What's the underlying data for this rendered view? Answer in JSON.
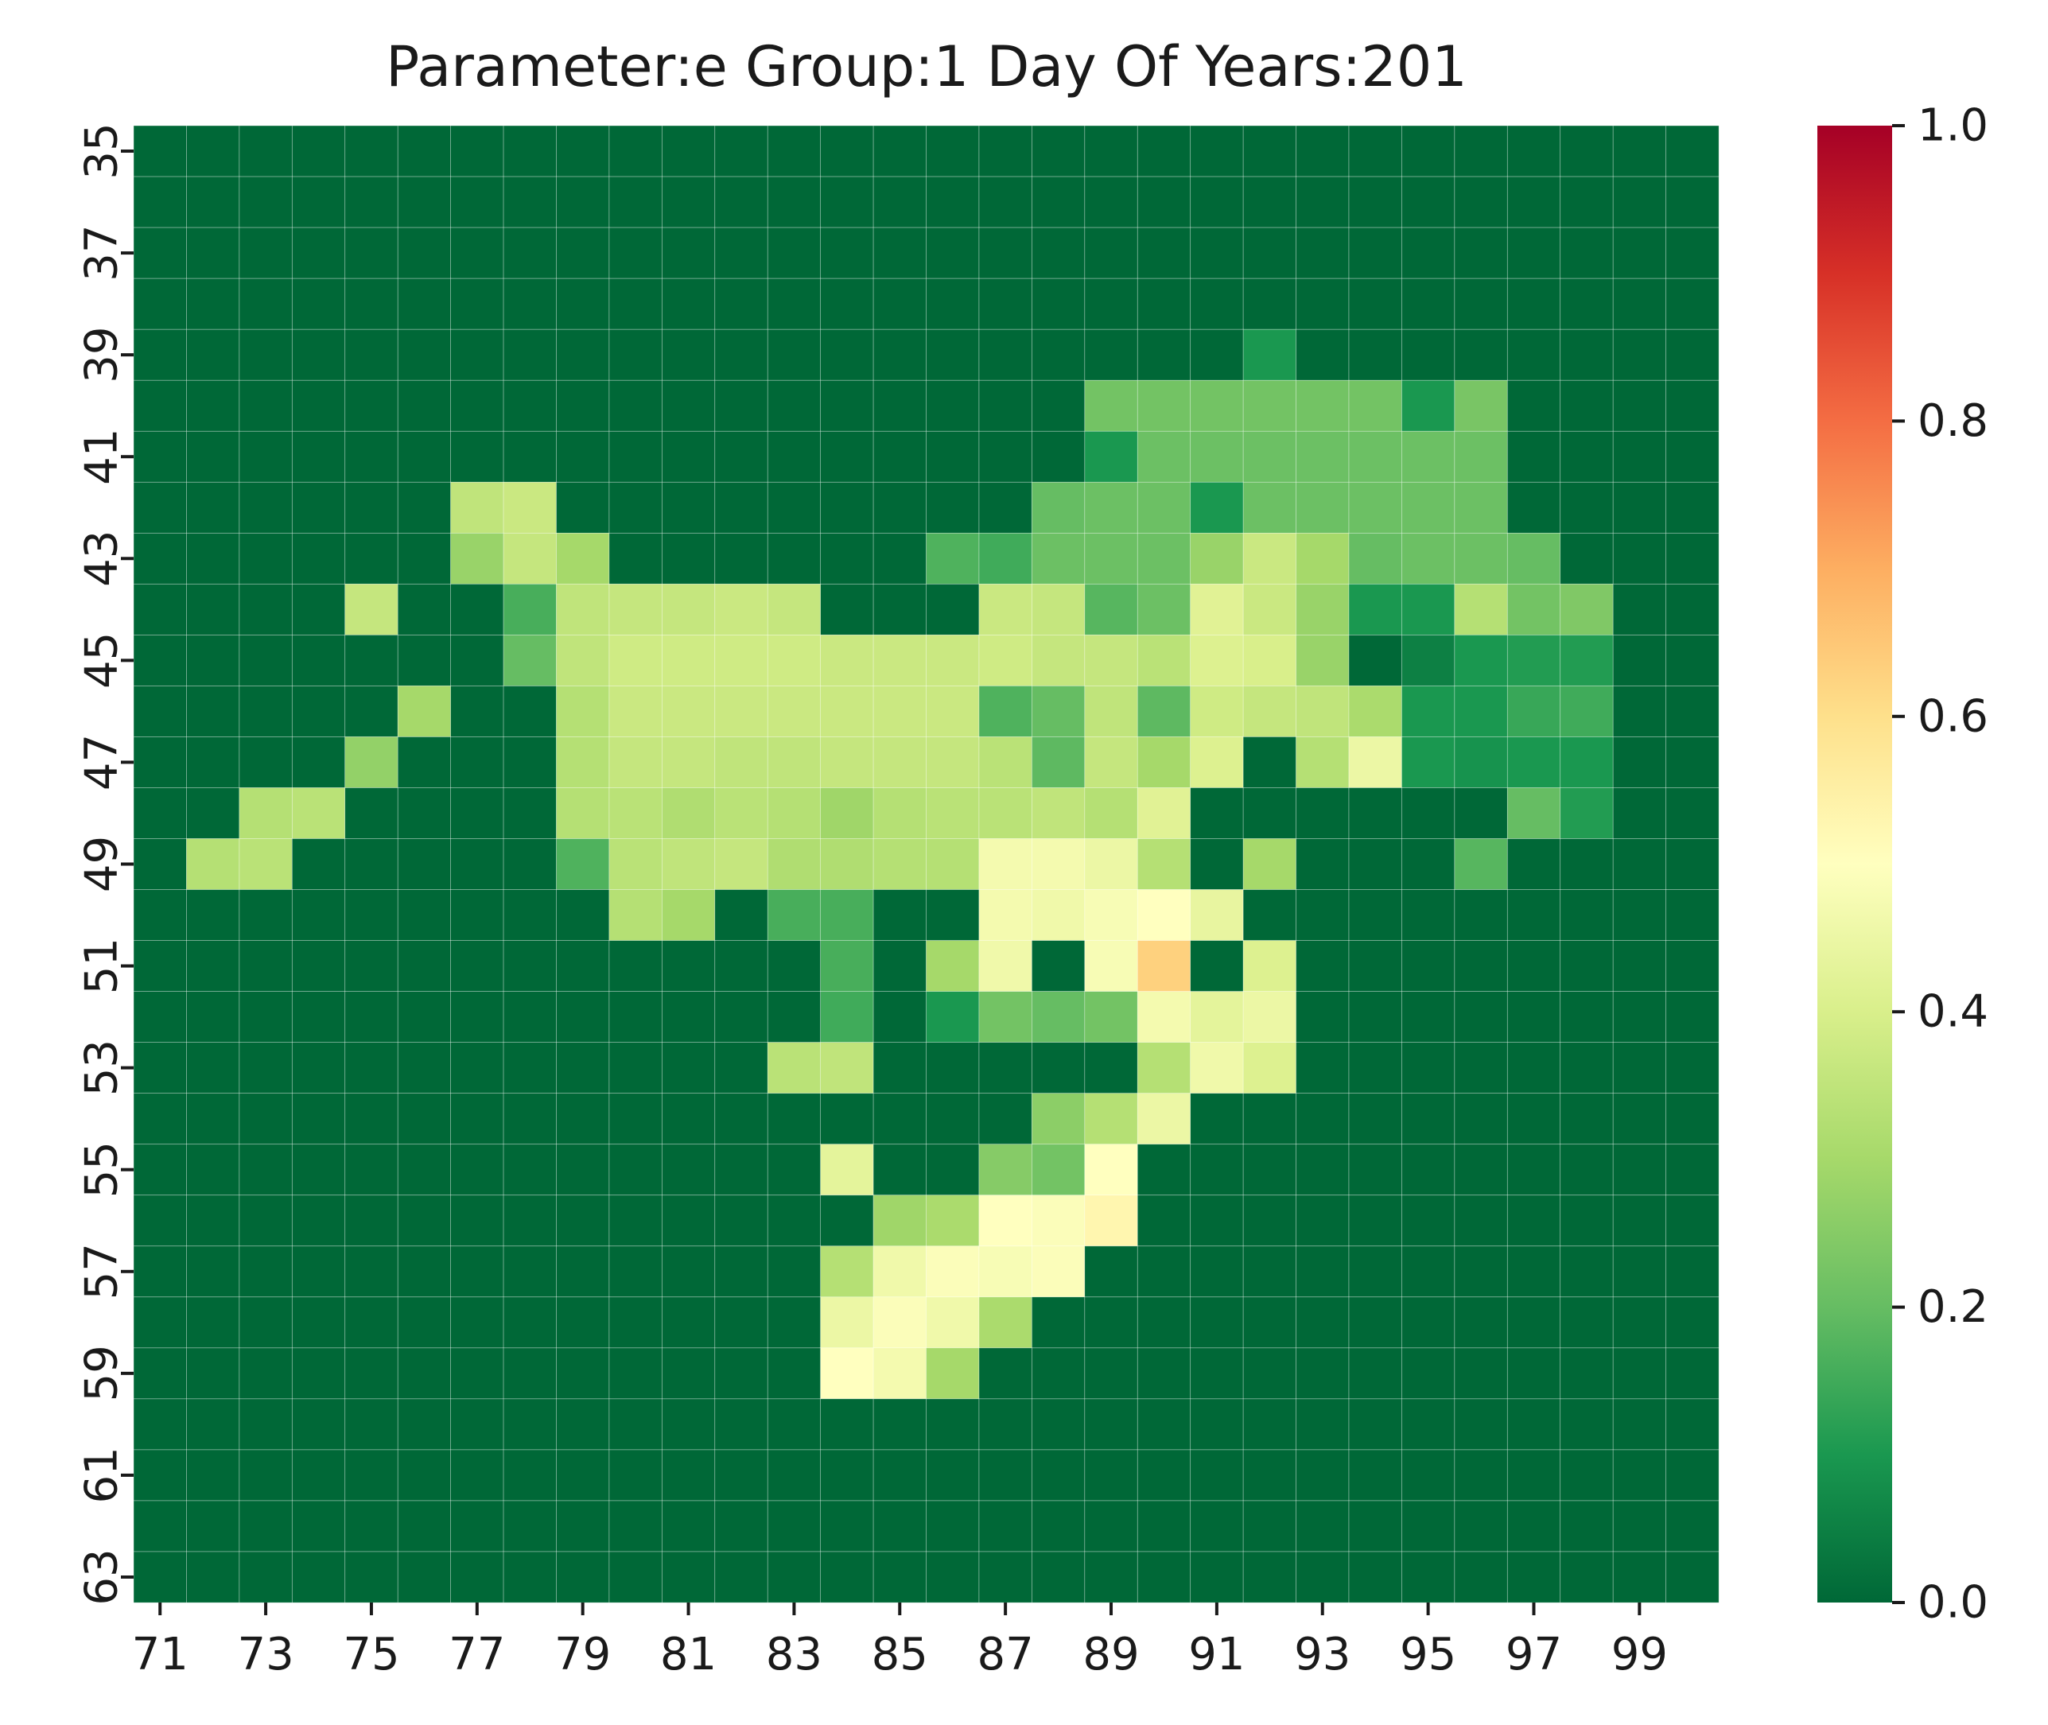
{
  "chart_data": {
    "type": "heatmap",
    "title": "Parameter:e Group:1 Day Of Years:201",
    "xlabel": "",
    "ylabel": "",
    "colormap": "RdYlGn_r",
    "colormap_stops": [
      "#006837",
      "#1a9850",
      "#66bd63",
      "#a6d96a",
      "#d9ef8b",
      "#ffffbf",
      "#fee08b",
      "#fdae61",
      "#f46d43",
      "#d73027",
      "#a50026"
    ],
    "x_values": [
      71,
      72,
      73,
      74,
      75,
      76,
      77,
      78,
      79,
      80,
      81,
      82,
      83,
      84,
      85,
      86,
      87,
      88,
      89,
      90,
      91,
      92,
      93,
      94,
      95,
      96,
      97,
      98,
      99,
      100
    ],
    "y_values": [
      35,
      36,
      37,
      38,
      39,
      40,
      41,
      42,
      43,
      44,
      45,
      46,
      47,
      48,
      49,
      50,
      51,
      52,
      53,
      54,
      55,
      56,
      57,
      58,
      59,
      60,
      61,
      62,
      63
    ],
    "x_tick_labels": [
      "71",
      "73",
      "75",
      "77",
      "79",
      "81",
      "83",
      "85",
      "87",
      "89",
      "91",
      "93",
      "95",
      "97",
      "99"
    ],
    "y_tick_labels": [
      "35",
      "37",
      "39",
      "41",
      "43",
      "45",
      "47",
      "49",
      "51",
      "53",
      "55",
      "57",
      "59",
      "61",
      "63"
    ],
    "vmin": 0.0,
    "vmax": 1.0,
    "colorbar_ticks": [
      "0.0",
      "0.2",
      "0.4",
      "0.6",
      "0.8",
      "1.0"
    ],
    "grid": true,
    "legend": "colorbar-right",
    "values": [
      [
        0,
        0,
        0,
        0,
        0,
        0,
        0,
        0,
        0,
        0,
        0,
        0,
        0,
        0,
        0,
        0,
        0,
        0,
        0,
        0,
        0,
        0,
        0,
        0,
        0,
        0,
        0,
        0,
        0,
        0
      ],
      [
        0,
        0,
        0,
        0,
        0,
        0,
        0,
        0,
        0,
        0,
        0,
        0,
        0,
        0,
        0,
        0,
        0,
        0,
        0,
        0,
        0,
        0,
        0,
        0,
        0,
        0,
        0,
        0,
        0,
        0
      ],
      [
        0,
        0,
        0,
        0,
        0,
        0,
        0,
        0,
        0,
        0,
        0,
        0,
        0,
        0,
        0,
        0,
        0,
        0,
        0,
        0,
        0,
        0,
        0,
        0,
        0,
        0,
        0,
        0,
        0,
        0
      ],
      [
        0,
        0,
        0,
        0,
        0,
        0,
        0,
        0,
        0,
        0,
        0,
        0,
        0,
        0,
        0,
        0,
        0,
        0,
        0,
        0,
        0,
        0,
        0,
        0,
        0,
        0,
        0,
        0,
        0,
        0
      ],
      [
        0,
        0,
        0,
        0,
        0,
        0,
        0,
        0,
        0,
        0,
        0,
        0,
        0,
        0,
        0,
        0,
        0,
        0,
        0,
        0,
        0,
        0.1,
        0,
        0,
        0,
        0,
        0,
        0,
        0,
        0
      ],
      [
        0,
        0,
        0,
        0,
        0,
        0,
        0,
        0,
        0,
        0,
        0,
        0,
        0,
        0,
        0,
        0,
        0,
        0,
        0.22,
        0.22,
        0.22,
        0.22,
        0.22,
        0.22,
        0.1,
        0.23,
        0,
        0,
        0,
        0
      ],
      [
        0,
        0,
        0,
        0,
        0,
        0,
        0,
        0,
        0,
        0,
        0,
        0,
        0,
        0,
        0,
        0,
        0,
        0,
        0.1,
        0.21,
        0.21,
        0.21,
        0.21,
        0.21,
        0.21,
        0.21,
        0,
        0,
        0,
        0
      ],
      [
        0,
        0,
        0,
        0,
        0,
        0,
        0.35,
        0.37,
        0,
        0,
        0,
        0,
        0,
        0,
        0,
        0,
        0,
        0.2,
        0.21,
        0.21,
        0.1,
        0.21,
        0.21,
        0.21,
        0.21,
        0.21,
        0,
        0,
        0,
        0
      ],
      [
        0,
        0,
        0,
        0,
        0,
        0,
        0.28,
        0.36,
        0.3,
        0,
        0,
        0,
        0,
        0,
        0,
        0.17,
        0.15,
        0.21,
        0.21,
        0.21,
        0.28,
        0.37,
        0.3,
        0.2,
        0.21,
        0.21,
        0.2,
        0,
        0,
        0
      ],
      [
        0,
        0,
        0,
        0,
        0.36,
        0,
        0,
        0.16,
        0.35,
        0.36,
        0.36,
        0.37,
        0.36,
        0,
        0,
        0,
        0.37,
        0.36,
        0.18,
        0.21,
        0.42,
        0.37,
        0.28,
        0.1,
        0.1,
        0.33,
        0.22,
        0.24,
        0,
        0
      ],
      [
        0,
        0,
        0,
        0,
        0,
        0,
        0,
        0.2,
        0.35,
        0.38,
        0.38,
        0.38,
        0.38,
        0.37,
        0.37,
        0.37,
        0.38,
        0.36,
        0.36,
        0.34,
        0.41,
        0.4,
        0.28,
        0,
        0.05,
        0.1,
        0.11,
        0.11,
        0,
        0
      ],
      [
        0,
        0,
        0,
        0,
        0,
        0.3,
        0,
        0,
        0.33,
        0.37,
        0.37,
        0.37,
        0.37,
        0.37,
        0.37,
        0.37,
        0.17,
        0.2,
        0.35,
        0.19,
        0.38,
        0.36,
        0.35,
        0.31,
        0.1,
        0.1,
        0.14,
        0.15,
        0,
        0
      ],
      [
        0,
        0,
        0,
        0,
        0.27,
        0,
        0,
        0,
        0.33,
        0.36,
        0.36,
        0.35,
        0.35,
        0.36,
        0.36,
        0.36,
        0.34,
        0.19,
        0.36,
        0.3,
        0.41,
        0,
        0.33,
        0.45,
        0.1,
        0.09,
        0.1,
        0.1,
        0,
        0
      ],
      [
        0,
        0,
        0.33,
        0.34,
        0,
        0,
        0,
        0,
        0.33,
        0.34,
        0.32,
        0.34,
        0.33,
        0.29,
        0.33,
        0.34,
        0.34,
        0.35,
        0.33,
        0.42,
        0,
        0,
        0,
        0,
        0,
        0,
        0.2,
        0.11,
        0,
        0
      ],
      [
        0,
        0.33,
        0.34,
        0,
        0,
        0,
        0,
        0,
        0.17,
        0.34,
        0.35,
        0.36,
        0.32,
        0.32,
        0.33,
        0.33,
        0.47,
        0.47,
        0.45,
        0.33,
        0,
        0.3,
        0,
        0,
        0,
        0.18,
        0,
        0,
        0,
        0
      ],
      [
        0,
        0,
        0,
        0,
        0,
        0,
        0,
        0,
        0,
        0.33,
        0.3,
        0,
        0.16,
        0.16,
        0,
        0,
        0.47,
        0.46,
        0.48,
        0.5,
        0.44,
        0,
        0,
        0,
        0,
        0,
        0,
        0,
        0,
        0
      ],
      [
        0,
        0,
        0,
        0,
        0,
        0,
        0,
        0,
        0,
        0,
        0,
        0,
        0,
        0.16,
        0,
        0.3,
        0.46,
        0,
        0.48,
        0.63,
        0,
        0.41,
        0,
        0,
        0,
        0,
        0,
        0,
        0,
        0
      ],
      [
        0,
        0,
        0,
        0,
        0,
        0,
        0,
        0,
        0,
        0,
        0,
        0,
        0,
        0.15,
        0,
        0.1,
        0.22,
        0.2,
        0.22,
        0.47,
        0.43,
        0.45,
        0,
        0,
        0,
        0,
        0,
        0,
        0,
        0
      ],
      [
        0,
        0,
        0,
        0,
        0,
        0,
        0,
        0,
        0,
        0,
        0,
        0,
        0.34,
        0.35,
        0,
        0,
        0,
        0,
        0,
        0.33,
        0.46,
        0.41,
        0,
        0,
        0,
        0,
        0,
        0,
        0,
        0
      ],
      [
        0,
        0,
        0,
        0,
        0,
        0,
        0,
        0,
        0,
        0,
        0,
        0,
        0,
        0,
        0,
        0,
        0,
        0.26,
        0.33,
        0.45,
        0,
        0,
        0,
        0,
        0,
        0,
        0,
        0,
        0,
        0
      ],
      [
        0,
        0,
        0,
        0,
        0,
        0,
        0,
        0,
        0,
        0,
        0,
        0,
        0,
        0.43,
        0,
        0,
        0.25,
        0.22,
        0.5,
        0,
        0,
        0,
        0,
        0,
        0,
        0,
        0,
        0,
        0,
        0
      ],
      [
        0,
        0,
        0,
        0,
        0,
        0,
        0,
        0,
        0,
        0,
        0,
        0,
        0,
        0,
        0.29,
        0.31,
        0.5,
        0.49,
        0.53,
        0,
        0,
        0,
        0,
        0,
        0,
        0,
        0,
        0,
        0,
        0
      ],
      [
        0,
        0,
        0,
        0,
        0,
        0,
        0,
        0,
        0,
        0,
        0,
        0,
        0,
        0.33,
        0.46,
        0.49,
        0.48,
        0.49,
        0,
        0,
        0,
        0,
        0,
        0,
        0,
        0,
        0,
        0,
        0,
        0
      ],
      [
        0,
        0,
        0,
        0,
        0,
        0,
        0,
        0,
        0,
        0,
        0,
        0,
        0,
        0.45,
        0.49,
        0.46,
        0.31,
        0,
        0,
        0,
        0,
        0,
        0,
        0,
        0,
        0,
        0,
        0,
        0,
        0
      ],
      [
        0,
        0,
        0,
        0,
        0,
        0,
        0,
        0,
        0,
        0,
        0,
        0,
        0,
        0.5,
        0.47,
        0.3,
        0,
        0,
        0,
        0,
        0,
        0,
        0,
        0,
        0,
        0,
        0,
        0,
        0,
        0
      ],
      [
        0,
        0,
        0,
        0,
        0,
        0,
        0,
        0,
        0,
        0,
        0,
        0,
        0,
        0,
        0,
        0,
        0,
        0,
        0,
        0,
        0,
        0,
        0,
        0,
        0,
        0,
        0,
        0,
        0,
        0
      ],
      [
        0,
        0,
        0,
        0,
        0,
        0,
        0,
        0,
        0,
        0,
        0,
        0,
        0,
        0,
        0,
        0,
        0,
        0,
        0,
        0,
        0,
        0,
        0,
        0,
        0,
        0,
        0,
        0,
        0,
        0
      ],
      [
        0,
        0,
        0,
        0,
        0,
        0,
        0,
        0,
        0,
        0,
        0,
        0,
        0,
        0,
        0,
        0,
        0,
        0,
        0,
        0,
        0,
        0,
        0,
        0,
        0,
        0,
        0,
        0,
        0,
        0
      ],
      [
        0,
        0,
        0,
        0,
        0,
        0,
        0,
        0,
        0,
        0,
        0,
        0,
        0,
        0,
        0,
        0,
        0,
        0,
        0,
        0,
        0,
        0,
        0,
        0,
        0,
        0,
        0,
        0,
        0,
        0
      ]
    ]
  }
}
